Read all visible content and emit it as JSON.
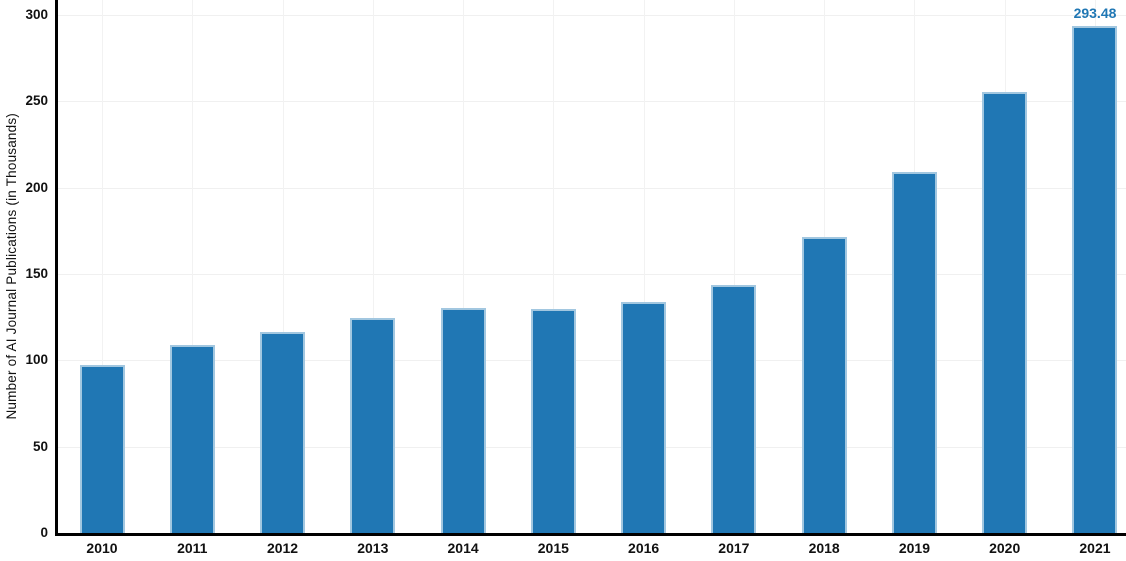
{
  "chart_data": {
    "type": "bar",
    "title": "",
    "xlabel": "",
    "ylabel": "Number of AI Journal Publications (in Thousands)",
    "categories": [
      "2010",
      "2011",
      "2012",
      "2013",
      "2014",
      "2015",
      "2016",
      "2017",
      "2018",
      "2019",
      "2020",
      "2021"
    ],
    "values": [
      97.3,
      108.9,
      116.6,
      124.7,
      130.5,
      129.8,
      133.6,
      143.6,
      171.3,
      208.9,
      255.2,
      293.48
    ],
    "ylim": [
      0,
      300
    ],
    "yticks": [
      0,
      50,
      100,
      150,
      200,
      250,
      300
    ],
    "grid": "both-axes, light gray",
    "legend": "none",
    "annotation": {
      "text": "293.48",
      "category": "2021",
      "position": "above-last-bar"
    },
    "colors": {
      "bar_fill": "#2077b4",
      "bar_edge": "#a2c7e0",
      "annotation_text": "#2077b4",
      "axis_line": "#000000",
      "tick_text": "#111111",
      "gridline": "#f0f0f0"
    }
  }
}
